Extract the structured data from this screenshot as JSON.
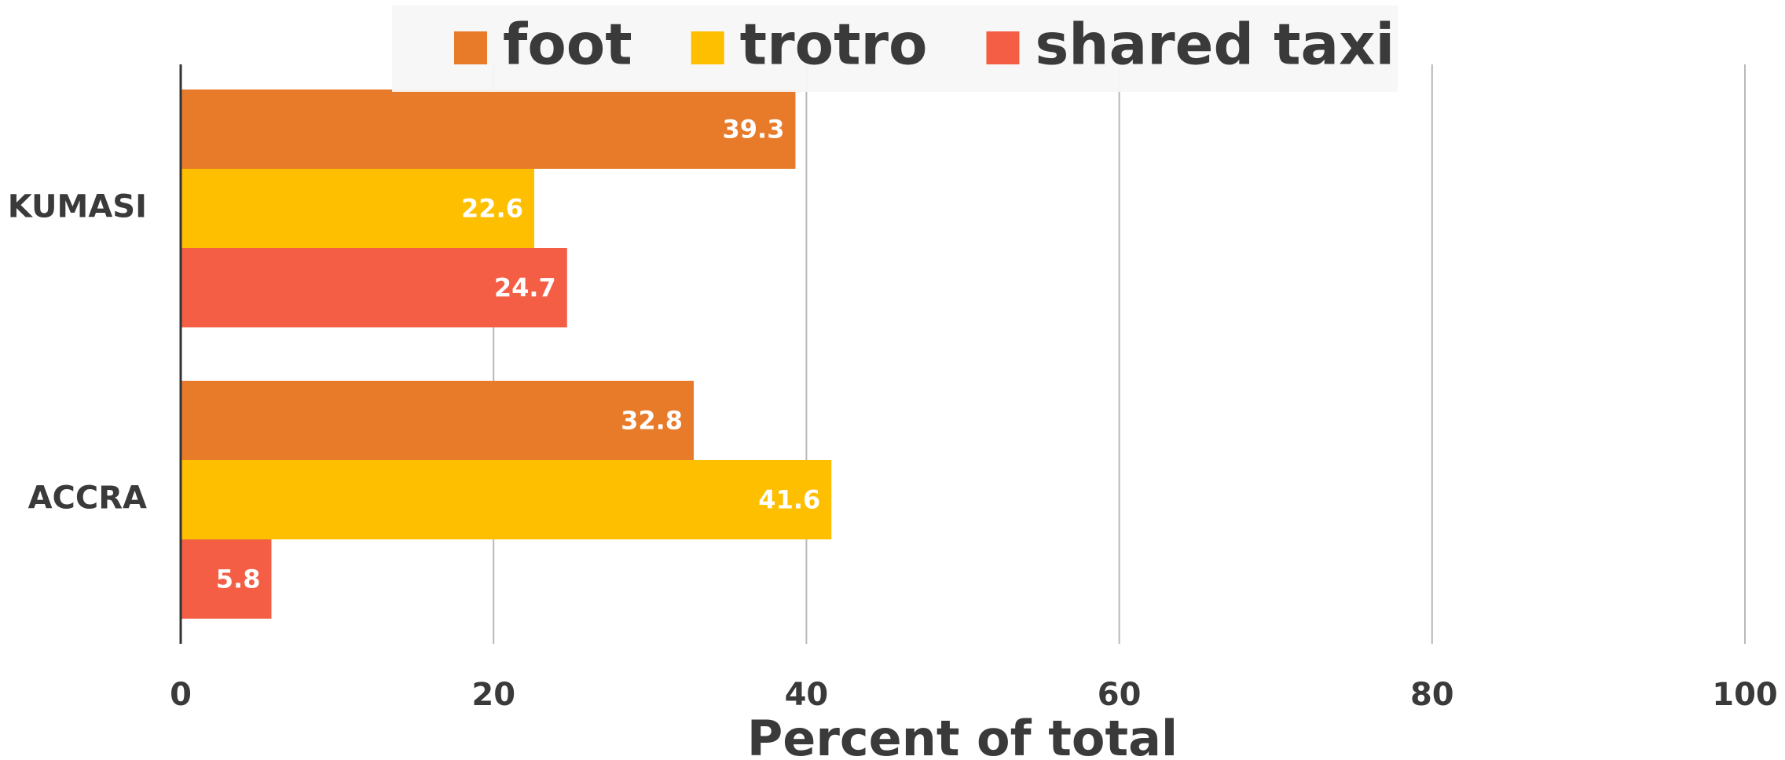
{
  "chart_data": {
    "type": "hbar",
    "categories": [
      "KUMASI",
      "ACCRA"
    ],
    "series": [
      {
        "name": "foot",
        "color": "#e87b2a",
        "values": [
          39.3,
          32.8
        ]
      },
      {
        "name": "trotro",
        "color": "#fdbf00",
        "values": [
          22.6,
          41.6
        ]
      },
      {
        "name": "shared taxi",
        "color": "#f45e45",
        "values": [
          24.7,
          5.8
        ]
      }
    ],
    "xlabel": "Percent of total",
    "xlim": [
      0,
      100
    ],
    "xticks": [
      0,
      20,
      40,
      60,
      80,
      100
    ],
    "grid": true,
    "legend": "top"
  }
}
